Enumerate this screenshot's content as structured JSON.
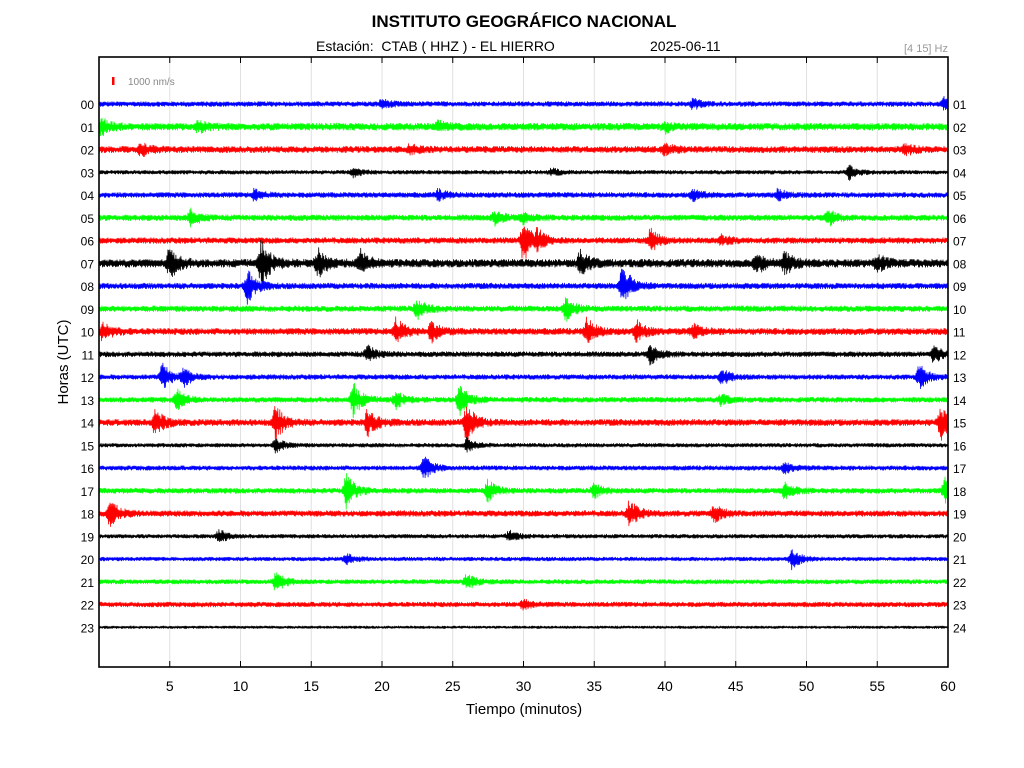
{
  "title": "INSTITUTO GEOGRÁFICO NACIONAL",
  "subtitle": {
    "station": "Estación:  CTAB ( HHZ ) - EL HIERRO",
    "date": "2025-06-11",
    "filter": "[4 15] Hz"
  },
  "scale_label": "1000 nm/s",
  "colors": {
    "trace_cycle": [
      "#0000ff",
      "#00ff00",
      "#ff0000",
      "#000000"
    ],
    "scale_marker": "#ff0000",
    "grid": "#e0e0e0",
    "axis": "#000000",
    "filter_text": "#999999"
  },
  "chart_data": {
    "type": "line",
    "title": "INSTITUTO GEOGRÁFICO NACIONAL",
    "xlabel": "Tiempo (minutos)",
    "ylabel": "Horas (UTC)",
    "xlim": [
      0,
      60
    ],
    "x_ticks": [
      5,
      10,
      15,
      20,
      25,
      30,
      35,
      40,
      45,
      50,
      55,
      60
    ],
    "grid": true,
    "left_hour_labels": [
      "00",
      "01",
      "02",
      "03",
      "04",
      "05",
      "06",
      "07",
      "08",
      "09",
      "10",
      "11",
      "12",
      "13",
      "14",
      "15",
      "16",
      "17",
      "18",
      "19",
      "20",
      "21",
      "22",
      "23"
    ],
    "right_hour_labels": [
      "01",
      "02",
      "03",
      "04",
      "05",
      "06",
      "07",
      "08",
      "09",
      "10",
      "11",
      "12",
      "13",
      "14",
      "15",
      "16",
      "17",
      "18",
      "19",
      "20",
      "21",
      "22",
      "23",
      "24"
    ],
    "traces": [
      {
        "hour": "00",
        "noise": 0.15,
        "events": [
          {
            "t": 20,
            "a": 0.25
          },
          {
            "t": 42,
            "a": 0.3
          },
          {
            "t": 59.8,
            "a": 0.4
          }
        ]
      },
      {
        "hour": "01",
        "noise": 0.22,
        "events": [
          {
            "t": 0.2,
            "a": 0.45
          },
          {
            "t": 7,
            "a": 0.3
          },
          {
            "t": 24,
            "a": 0.25
          },
          {
            "t": 40,
            "a": 0.3
          }
        ]
      },
      {
        "hour": "02",
        "noise": 0.2,
        "events": [
          {
            "t": 3,
            "a": 0.35
          },
          {
            "t": 22,
            "a": 0.25
          },
          {
            "t": 40,
            "a": 0.3
          },
          {
            "t": 57,
            "a": 0.3
          }
        ]
      },
      {
        "hour": "03",
        "noise": 0.12,
        "events": [
          {
            "t": 18,
            "a": 0.25
          },
          {
            "t": 32,
            "a": 0.2
          },
          {
            "t": 53,
            "a": 0.45
          }
        ]
      },
      {
        "hour": "04",
        "noise": 0.16,
        "events": [
          {
            "t": 11,
            "a": 0.3
          },
          {
            "t": 24,
            "a": 0.3
          },
          {
            "t": 42,
            "a": 0.3
          },
          {
            "t": 48,
            "a": 0.3
          }
        ]
      },
      {
        "hour": "05",
        "noise": 0.18,
        "events": [
          {
            "t": 6.5,
            "a": 0.5
          },
          {
            "t": 28,
            "a": 0.4
          },
          {
            "t": 30,
            "a": 0.3
          },
          {
            "t": 51.5,
            "a": 0.5
          }
        ]
      },
      {
        "hour": "06",
        "noise": 0.18,
        "events": [
          {
            "t": 30,
            "a": 1.3
          },
          {
            "t": 31,
            "a": 0.5
          },
          {
            "t": 39,
            "a": 0.7
          },
          {
            "t": 44,
            "a": 0.3
          }
        ]
      },
      {
        "hour": "07",
        "noise": 0.25,
        "events": [
          {
            "t": 5,
            "a": 0.9
          },
          {
            "t": 11.5,
            "a": 1.4
          },
          {
            "t": 15.5,
            "a": 0.8
          },
          {
            "t": 18.5,
            "a": 0.7
          },
          {
            "t": 34,
            "a": 0.7
          },
          {
            "t": 46.5,
            "a": 0.6
          },
          {
            "t": 48.5,
            "a": 0.6
          },
          {
            "t": 55,
            "a": 0.5
          }
        ]
      },
      {
        "hour": "08",
        "noise": 0.18,
        "events": [
          {
            "t": 10.5,
            "a": 1.0
          },
          {
            "t": 37,
            "a": 1.4
          }
        ]
      },
      {
        "hour": "09",
        "noise": 0.18,
        "events": [
          {
            "t": 22.5,
            "a": 0.6
          },
          {
            "t": 33,
            "a": 0.7
          }
        ]
      },
      {
        "hour": "10",
        "noise": 0.2,
        "events": [
          {
            "t": 0.3,
            "a": 0.6
          },
          {
            "t": 21,
            "a": 0.8
          },
          {
            "t": 23.5,
            "a": 0.6
          },
          {
            "t": 34.5,
            "a": 0.8
          },
          {
            "t": 38,
            "a": 0.6
          },
          {
            "t": 42,
            "a": 0.4
          }
        ]
      },
      {
        "hour": "11",
        "noise": 0.16,
        "events": [
          {
            "t": 19,
            "a": 0.5
          },
          {
            "t": 39,
            "a": 0.6
          },
          {
            "t": 59,
            "a": 0.5
          }
        ]
      },
      {
        "hour": "12",
        "noise": 0.15,
        "events": [
          {
            "t": 4.5,
            "a": 0.8
          },
          {
            "t": 6,
            "a": 0.5
          },
          {
            "t": 44,
            "a": 0.5
          },
          {
            "t": 58,
            "a": 0.7
          }
        ]
      },
      {
        "hour": "13",
        "noise": 0.16,
        "events": [
          {
            "t": 5.5,
            "a": 0.6
          },
          {
            "t": 18,
            "a": 1.0
          },
          {
            "t": 21,
            "a": 0.5
          },
          {
            "t": 25.5,
            "a": 1.0
          },
          {
            "t": 44,
            "a": 0.3
          }
        ]
      },
      {
        "hour": "14",
        "noise": 0.2,
        "events": [
          {
            "t": 4,
            "a": 0.8
          },
          {
            "t": 12.5,
            "a": 1.0
          },
          {
            "t": 19,
            "a": 0.8
          },
          {
            "t": 26,
            "a": 1.2
          },
          {
            "t": 59.5,
            "a": 1.0
          }
        ]
      },
      {
        "hour": "15",
        "noise": 0.12,
        "events": [
          {
            "t": 12.5,
            "a": 0.4
          },
          {
            "t": 26,
            "a": 0.4
          }
        ]
      },
      {
        "hour": "16",
        "noise": 0.14,
        "events": [
          {
            "t": 23,
            "a": 0.7
          },
          {
            "t": 48.5,
            "a": 0.3
          }
        ]
      },
      {
        "hour": "17",
        "noise": 0.16,
        "events": [
          {
            "t": 17.5,
            "a": 1.1
          },
          {
            "t": 27.5,
            "a": 0.6
          },
          {
            "t": 35,
            "a": 0.4
          },
          {
            "t": 48.5,
            "a": 0.5
          },
          {
            "t": 59.8,
            "a": 0.8
          }
        ]
      },
      {
        "hour": "18",
        "noise": 0.18,
        "events": [
          {
            "t": 0.8,
            "a": 0.8
          },
          {
            "t": 37.5,
            "a": 0.8
          },
          {
            "t": 43.5,
            "a": 0.5
          }
        ]
      },
      {
        "hour": "19",
        "noise": 0.12,
        "events": [
          {
            "t": 8.5,
            "a": 0.4
          },
          {
            "t": 29,
            "a": 0.3
          }
        ]
      },
      {
        "hour": "20",
        "noise": 0.12,
        "events": [
          {
            "t": 17.5,
            "a": 0.3
          },
          {
            "t": 49,
            "a": 0.6
          }
        ]
      },
      {
        "hour": "21",
        "noise": 0.14,
        "events": [
          {
            "t": 12.5,
            "a": 0.6
          },
          {
            "t": 26,
            "a": 0.5
          }
        ]
      },
      {
        "hour": "22",
        "noise": 0.15,
        "events": [
          {
            "t": 30,
            "a": 0.3
          }
        ]
      },
      {
        "hour": "23",
        "noise": 0.08,
        "events": []
      }
    ]
  }
}
